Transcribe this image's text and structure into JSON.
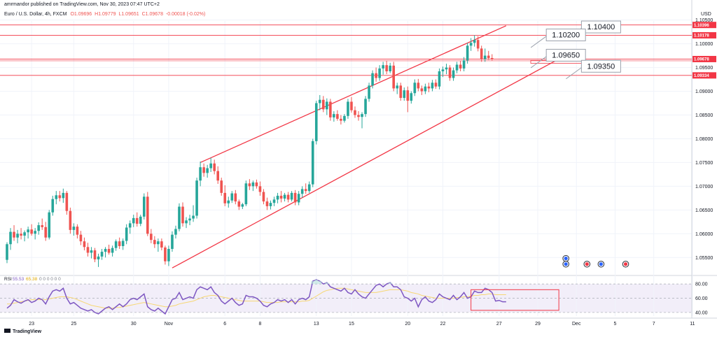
{
  "header": {
    "author_line": "amrmandor published on TradingView.com, Nov 30, 2023 07:47 UTC+2",
    "symbol": "Euro / U.S. Dollar, 4h, FXCM",
    "ohlc": {
      "o": "O1.09696",
      "h": "H1.09779",
      "l": "L1.09651",
      "c": "C1.09678",
      "chg": "-0.00018 (-0.02%)"
    }
  },
  "currency": "USD",
  "logo_text": "TradingView",
  "colors": {
    "up": "#26a69a",
    "down": "#ef5350",
    "red_line": "#f23645",
    "rsi": "#7e57c2",
    "rsi_ma": "#f7d774",
    "rsi_band": "#ede7f6",
    "tag": "#f23645"
  },
  "chart_data": {
    "type": "candlestick",
    "timeframe": "4h",
    "ylim": [
      1.0518,
      1.1048
    ],
    "y_ticks": [
      1.055,
      1.06,
      1.065,
      1.07,
      1.075,
      1.08,
      1.085,
      1.09,
      1.095,
      1.1,
      1.105
    ],
    "x_ticks": [
      {
        "label": "23",
        "bar": 7
      },
      {
        "label": "25",
        "bar": 19
      },
      {
        "label": "30",
        "bar": 36
      },
      {
        "label": "Nov",
        "bar": 46
      },
      {
        "label": "6",
        "bar": 62
      },
      {
        "label": "8",
        "bar": 72
      },
      {
        "label": "13",
        "bar": 88
      },
      {
        "label": "15",
        "bar": 98
      },
      {
        "label": "20",
        "bar": 114
      },
      {
        "label": "22",
        "bar": 124
      },
      {
        "label": "27",
        "bar": 140
      },
      {
        "label": "29",
        "bar": 151
      },
      {
        "label": "Dec",
        "bar": 162
      },
      {
        "label": "5",
        "bar": 173
      },
      {
        "label": "7",
        "bar": 184
      },
      {
        "label": "11",
        "bar": 195
      }
    ],
    "candles": [
      [
        1.0545,
        1.0582,
        1.0538,
        1.0578
      ],
      [
        1.0578,
        1.0612,
        1.0566,
        1.0604
      ],
      [
        1.0604,
        1.0618,
        1.0585,
        1.0592
      ],
      [
        1.0592,
        1.0608,
        1.058,
        1.06
      ],
      [
        1.06,
        1.0612,
        1.0588,
        1.0596
      ],
      [
        1.0596,
        1.0607,
        1.0584,
        1.0603
      ],
      [
        1.0603,
        1.0615,
        1.059,
        1.0609
      ],
      [
        1.0609,
        1.062,
        1.0596,
        1.06
      ],
      [
        1.06,
        1.0612,
        1.0588,
        1.0606
      ],
      [
        1.0606,
        1.0624,
        1.0598,
        1.0618
      ],
      [
        1.0618,
        1.0632,
        1.0608,
        1.0614
      ],
      [
        1.0614,
        1.0625,
        1.0585,
        1.0592
      ],
      [
        1.0592,
        1.065,
        1.0588,
        1.0645
      ],
      [
        1.0645,
        1.068,
        1.0638,
        1.0673
      ],
      [
        1.0673,
        1.069,
        1.0662,
        1.0681
      ],
      [
        1.0681,
        1.069,
        1.0668,
        1.0675
      ],
      [
        1.0675,
        1.0695,
        1.0665,
        1.0686
      ],
      [
        1.0686,
        1.069,
        1.064,
        1.0648
      ],
      [
        1.0648,
        1.0655,
        1.06,
        1.0608
      ],
      [
        1.0608,
        1.0622,
        1.0596,
        1.0615
      ],
      [
        1.0615,
        1.062,
        1.059,
        1.0598
      ],
      [
        1.0598,
        1.0606,
        1.0576,
        1.0584
      ],
      [
        1.0584,
        1.0592,
        1.0565,
        1.0572
      ],
      [
        1.0572,
        1.0581,
        1.0552,
        1.056
      ],
      [
        1.056,
        1.0572,
        1.0548,
        1.0565
      ],
      [
        1.0565,
        1.057,
        1.054,
        1.0546
      ],
      [
        1.0546,
        1.0558,
        1.053,
        1.0552
      ],
      [
        1.0552,
        1.0568,
        1.0545,
        1.0562
      ],
      [
        1.0562,
        1.0572,
        1.055,
        1.0568
      ],
      [
        1.0568,
        1.0577,
        1.0556,
        1.056
      ],
      [
        1.056,
        1.0575,
        1.0552,
        1.057
      ],
      [
        1.057,
        1.0588,
        1.0564,
        1.0584
      ],
      [
        1.0584,
        1.0592,
        1.0568,
        1.0574
      ],
      [
        1.0574,
        1.059,
        1.0566,
        1.0585
      ],
      [
        1.0585,
        1.062,
        1.0578,
        1.0613
      ],
      [
        1.0613,
        1.0628,
        1.06,
        1.0622
      ],
      [
        1.0622,
        1.064,
        1.0614,
        1.0633
      ],
      [
        1.0633,
        1.0645,
        1.0615,
        1.0621
      ],
      [
        1.0621,
        1.064,
        1.0616,
        1.0636
      ],
      [
        1.0636,
        1.0685,
        1.063,
        1.0678
      ],
      [
        1.0678,
        1.0688,
        1.0595,
        1.06
      ],
      [
        1.06,
        1.061,
        1.058,
        1.0587
      ],
      [
        1.0587,
        1.0595,
        1.057,
        1.0578
      ],
      [
        1.0578,
        1.059,
        1.0562,
        1.0584
      ],
      [
        1.0584,
        1.059,
        1.0565,
        1.0571
      ],
      [
        1.0571,
        1.0575,
        1.0535,
        1.0542
      ],
      [
        1.0542,
        1.0575,
        1.0532,
        1.0568
      ],
      [
        1.0568,
        1.0605,
        1.0562,
        1.0598
      ],
      [
        1.0598,
        1.0617,
        1.059,
        1.061
      ],
      [
        1.061,
        1.0664,
        1.0605,
        1.0657
      ],
      [
        1.0657,
        1.0666,
        1.0615,
        1.0622
      ],
      [
        1.0622,
        1.0635,
        1.0612,
        1.0628
      ],
      [
        1.0628,
        1.064,
        1.0618,
        1.0632
      ],
      [
        1.0632,
        1.066,
        1.0625,
        1.0638
      ],
      [
        1.0638,
        1.0718,
        1.0632,
        1.0712
      ],
      [
        1.0712,
        1.0752,
        1.07,
        1.074
      ],
      [
        1.074,
        1.0748,
        1.072,
        1.0728
      ],
      [
        1.0728,
        1.0745,
        1.0718,
        1.0738
      ],
      [
        1.0738,
        1.076,
        1.073,
        1.0748
      ],
      [
        1.0748,
        1.0756,
        1.0725,
        1.0732
      ],
      [
        1.0732,
        1.0742,
        1.0705,
        1.0712
      ],
      [
        1.0712,
        1.0718,
        1.068,
        1.0686
      ],
      [
        1.0686,
        1.0702,
        1.0658,
        1.0664
      ],
      [
        1.0664,
        1.0678,
        1.0655,
        1.067
      ],
      [
        1.067,
        1.069,
        1.0665,
        1.0685
      ],
      [
        1.0685,
        1.0692,
        1.0662,
        1.0668
      ],
      [
        1.0668,
        1.0672,
        1.065,
        1.0657
      ],
      [
        1.0657,
        1.0665,
        1.0652,
        1.0662
      ],
      [
        1.0662,
        1.0712,
        1.0658,
        1.0706
      ],
      [
        1.0706,
        1.0715,
        1.0692,
        1.07
      ],
      [
        1.07,
        1.0712,
        1.069,
        1.0708
      ],
      [
        1.0708,
        1.0714,
        1.0695,
        1.07
      ],
      [
        1.07,
        1.071,
        1.068,
        1.0688
      ],
      [
        1.0688,
        1.0694,
        1.0662,
        1.0668
      ],
      [
        1.0668,
        1.0676,
        1.065,
        1.0658
      ],
      [
        1.0658,
        1.067,
        1.0651,
        1.0665
      ],
      [
        1.0665,
        1.0678,
        1.0658,
        1.0672
      ],
      [
        1.0672,
        1.0686,
        1.0664,
        1.068
      ],
      [
        1.068,
        1.069,
        1.0666,
        1.0674
      ],
      [
        1.0674,
        1.0686,
        1.0668,
        1.0682
      ],
      [
        1.0682,
        1.0688,
        1.0666,
        1.0672
      ],
      [
        1.0672,
        1.069,
        1.0668,
        1.0686
      ],
      [
        1.0686,
        1.0692,
        1.066,
        1.0666
      ],
      [
        1.0666,
        1.069,
        1.066,
        1.0684
      ],
      [
        1.0684,
        1.07,
        1.0676,
        1.0694
      ],
      [
        1.0694,
        1.0706,
        1.0684,
        1.069
      ],
      [
        1.069,
        1.071,
        1.0686,
        1.0704
      ],
      [
        1.0704,
        1.08,
        1.0698,
        1.0795
      ],
      [
        1.0795,
        1.088,
        1.0788,
        1.0875
      ],
      [
        1.0875,
        1.0892,
        1.086,
        1.0882
      ],
      [
        1.0882,
        1.089,
        1.0856,
        1.0862
      ],
      [
        1.0862,
        1.0885,
        1.085,
        1.0878
      ],
      [
        1.0878,
        1.0884,
        1.0838,
        1.0845
      ],
      [
        1.0845,
        1.0858,
        1.0836,
        1.0852
      ],
      [
        1.0852,
        1.086,
        1.0838,
        1.0842
      ],
      [
        1.0842,
        1.085,
        1.083,
        1.0838
      ],
      [
        1.0838,
        1.0852,
        1.0834,
        1.0848
      ],
      [
        1.0848,
        1.0884,
        1.0842,
        1.0878
      ],
      [
        1.0878,
        1.0888,
        1.0855,
        1.086
      ],
      [
        1.086,
        1.0868,
        1.0844,
        1.085
      ],
      [
        1.085,
        1.0858,
        1.0838,
        1.0846
      ],
      [
        1.0846,
        1.0856,
        1.0822,
        1.0852
      ],
      [
        1.0852,
        1.089,
        1.0846,
        1.0884
      ],
      [
        1.0884,
        1.0918,
        1.0878,
        1.0912
      ],
      [
        1.0912,
        1.0944,
        1.0906,
        1.0938
      ],
      [
        1.0938,
        1.095,
        1.092,
        1.0928
      ],
      [
        1.0928,
        1.0955,
        1.0922,
        1.0948
      ],
      [
        1.0948,
        1.0962,
        1.0935,
        1.0955
      ],
      [
        1.0955,
        1.0964,
        1.0936,
        1.0942
      ],
      [
        1.0942,
        1.096,
        1.0938,
        1.0954
      ],
      [
        1.0954,
        1.0962,
        1.09,
        1.0906
      ],
      [
        1.0906,
        1.0918,
        1.0894,
        1.0912
      ],
      [
        1.0912,
        1.0918,
        1.088,
        1.0886
      ],
      [
        1.0886,
        1.0908,
        1.088,
        1.0902
      ],
      [
        1.0902,
        1.091,
        1.0856,
        1.088
      ],
      [
        1.088,
        1.09,
        1.0874,
        1.0896
      ],
      [
        1.0896,
        1.0925,
        1.089,
        1.0918
      ],
      [
        1.0918,
        1.0926,
        1.09,
        1.0906
      ],
      [
        1.0906,
        1.0912,
        1.0892,
        1.09
      ],
      [
        1.09,
        1.0916,
        1.0894,
        1.091
      ],
      [
        1.091,
        1.0918,
        1.0898,
        1.0906
      ],
      [
        1.0906,
        1.0924,
        1.09,
        1.0918
      ],
      [
        1.0918,
        1.0925,
        1.0905,
        1.091
      ],
      [
        1.091,
        1.0948,
        1.0904,
        1.0942
      ],
      [
        1.0942,
        1.0952,
        1.093,
        1.0946
      ],
      [
        1.0946,
        1.0958,
        1.0936,
        1.095
      ],
      [
        1.095,
        1.0955,
        1.0922,
        1.0928
      ],
      [
        1.0928,
        1.095,
        1.0922,
        1.0944
      ],
      [
        1.0944,
        1.0962,
        1.0938,
        1.0956
      ],
      [
        1.0956,
        1.0964,
        1.0942,
        1.0948
      ],
      [
        1.0948,
        1.0972,
        1.0942,
        1.0965
      ],
      [
        1.0965,
        1.1002,
        1.0958,
        1.0996
      ],
      [
        1.0996,
        1.1012,
        1.0985,
        1.1002
      ],
      [
        1.1002,
        1.1018,
        1.0994,
        1.1008
      ],
      [
        1.1008,
        1.1016,
        1.0984,
        1.099
      ],
      [
        1.099,
        1.0996,
        1.0962,
        1.0968
      ],
      [
        1.0968,
        1.099,
        1.0962,
        1.0975
      ],
      [
        1.0975,
        1.0985,
        1.0966,
        1.097
      ],
      [
        1.097,
        1.0978,
        1.0965,
        1.0968
      ]
    ],
    "levels": [
      {
        "price": 1.10396,
        "tag": "1.10396"
      },
      {
        "price": 1.10178,
        "tag": "1.10178"
      },
      {
        "price": 1.09678,
        "tag": "1.09678"
      },
      {
        "price": 1.09334,
        "tag": "1.09334"
      }
    ],
    "channel": {
      "upper": [
        [
          55,
          1.075
        ],
        [
          142,
          1.1038
        ]
      ],
      "lower": [
        [
          47,
          1.0528
        ],
        [
          157,
          1.0968
        ]
      ]
    },
    "callouts": [
      {
        "label": "1.10400",
        "bar": 169,
        "price": 1.1045
      },
      {
        "label": "1.10200",
        "bar": 159,
        "price": 1.10282
      },
      {
        "label": "1.09650",
        "bar": 159,
        "price": 1.09855
      },
      {
        "label": "1.09350",
        "bar": 169,
        "price": 1.09622
      }
    ],
    "rsi": {
      "label": "RSI",
      "value": "55.53",
      "ma": "65.38",
      "extra": "0 0 0 0 0 0",
      "ylim": [
        35,
        90
      ],
      "levels": [
        80,
        60,
        40
      ],
      "values": [
        46,
        50,
        58,
        55,
        53,
        56,
        58,
        54,
        56,
        60,
        58,
        52,
        62,
        70,
        72,
        70,
        74,
        60,
        52,
        54,
        50,
        46,
        44,
        42,
        44,
        40,
        38,
        42,
        46,
        48,
        44,
        48,
        52,
        48,
        52,
        58,
        60,
        58,
        62,
        66,
        48,
        44,
        42,
        46,
        42,
        38,
        48,
        58,
        60,
        68,
        58,
        60,
        62,
        60,
        72,
        76,
        74,
        72,
        76,
        68,
        64,
        56,
        52,
        56,
        60,
        54,
        50,
        52,
        64,
        62,
        62,
        60,
        56,
        50,
        48,
        52,
        54,
        58,
        56,
        58,
        54,
        58,
        52,
        58,
        60,
        58,
        62,
        84,
        86,
        84,
        80,
        82,
        76,
        74,
        72,
        70,
        74,
        68,
        66,
        72,
        66,
        62,
        60,
        66,
        72,
        78,
        80,
        76,
        80,
        82,
        76,
        76,
        72,
        62,
        60,
        56,
        60,
        48,
        58,
        62,
        56,
        54,
        58,
        66,
        62,
        60,
        58,
        64,
        58,
        62,
        68,
        60,
        62,
        70,
        68,
        68,
        74,
        72,
        68,
        56,
        57,
        55,
        55
      ],
      "ma_values": [
        52,
        52,
        53,
        54,
        55,
        56,
        57,
        58,
        58,
        58,
        58,
        58,
        59,
        60,
        61,
        62,
        62,
        62,
        61,
        60,
        58,
        56,
        54,
        52,
        50,
        49,
        48,
        47,
        46,
        46,
        46,
        47,
        47,
        48,
        49,
        50,
        51,
        52,
        53,
        54,
        53,
        52,
        51,
        50,
        49,
        48,
        48,
        49,
        50,
        52,
        53,
        54,
        55,
        56,
        58,
        60,
        62,
        63,
        64,
        64,
        63,
        62,
        61,
        60,
        59,
        58,
        57,
        56,
        56,
        56,
        56,
        56,
        56,
        55,
        54,
        54,
        54,
        54,
        55,
        55,
        55,
        55,
        55,
        55,
        56,
        56,
        57,
        60,
        63,
        66,
        69,
        71,
        72,
        73,
        74,
        74,
        74,
        73,
        72,
        71,
        70,
        69,
        68,
        68,
        68,
        68,
        69,
        70,
        71,
        72,
        72,
        72,
        72,
        71,
        70,
        68,
        67,
        66,
        64,
        63,
        62,
        61,
        60,
        60,
        60,
        60,
        60,
        60,
        61,
        61,
        62,
        62,
        63,
        64,
        64,
        65,
        65,
        66,
        66,
        65,
        65,
        65,
        65
      ]
    }
  }
}
